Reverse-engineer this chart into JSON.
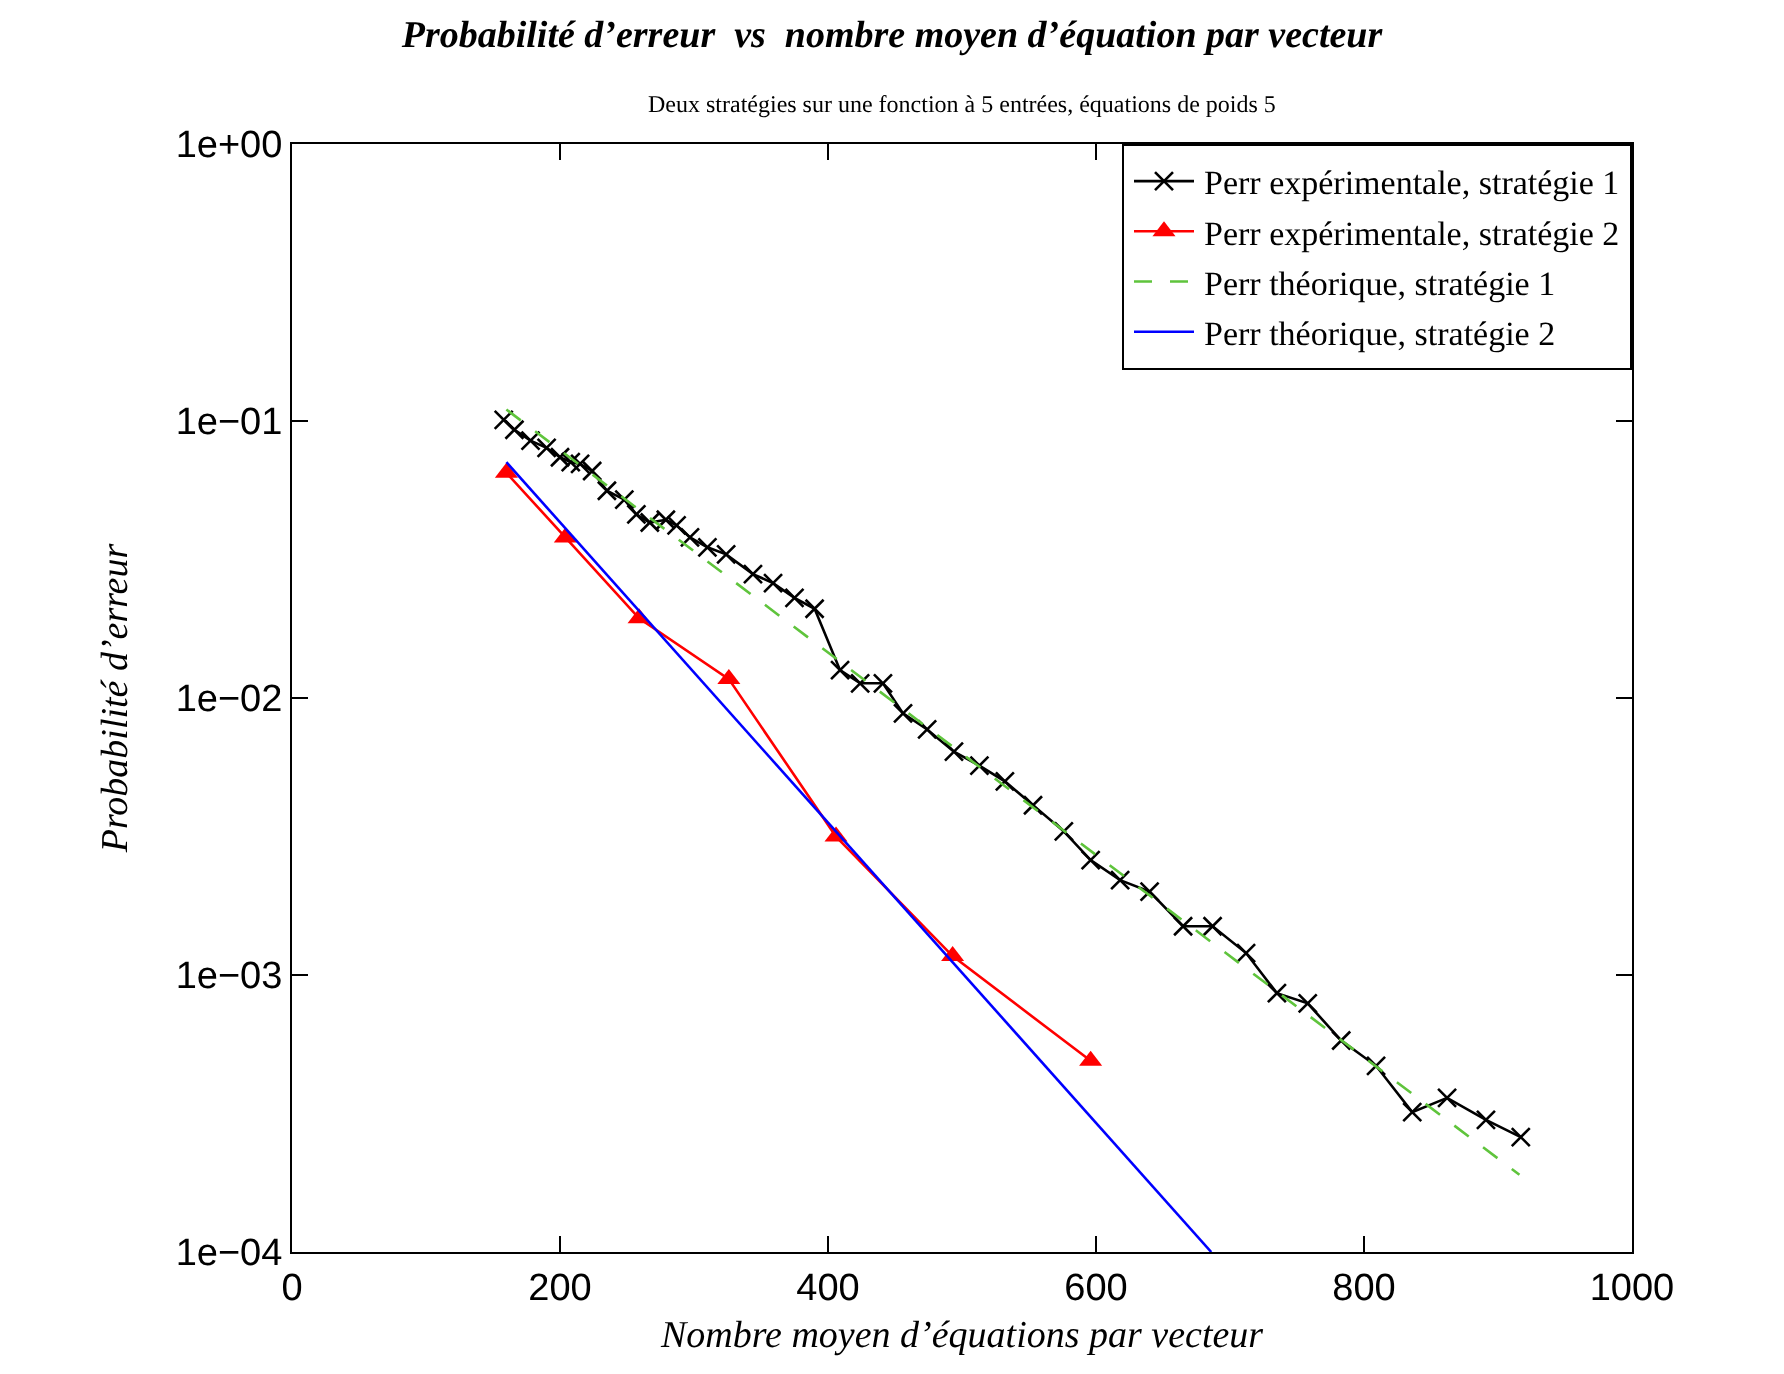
{
  "chart_data": {
    "type": "line",
    "title": "Probabilité d’erreur  vs  nombre moyen d’équation par vecteur",
    "subtitle": "Deux stratégies sur une fonction à 5 entrées, équations de poids 5",
    "xlabel": "Nombre moyen d’équations par vecteur",
    "ylabel": "Probabilité d’erreur",
    "log": "y",
    "grid": false,
    "legend": "top right",
    "xlim": [
      0,
      1000
    ],
    "xticks": [
      0,
      200,
      400,
      600,
      800,
      1000
    ],
    "ylim": [
      0.0001,
      1
    ],
    "yticks": [
      {
        "value": 1,
        "label": "1e+00"
      },
      {
        "value": 0.1,
        "label": "1e−01"
      },
      {
        "value": 0.01,
        "label": "1e−02"
      },
      {
        "value": 0.001,
        "label": "1e−03"
      },
      {
        "value": 0.0001,
        "label": "1e−04"
      }
    ],
    "series": [
      {
        "name": "Perr expérimentale, stratégie 1",
        "color": "#000000",
        "marker": "cross",
        "line_style": "solid",
        "x": [
          158,
          166,
          178,
          190,
          200,
          208,
          215,
          224,
          235,
          248,
          257,
          267,
          279,
          287,
          297,
          310,
          324,
          344,
          359,
          375,
          390,
          409,
          424,
          441,
          456,
          474,
          494,
          513,
          532,
          553,
          576,
          596,
          618,
          640,
          665,
          687,
          712,
          735,
          758,
          783,
          809,
          836,
          862,
          891,
          917
        ],
        "values": [
          0.101,
          0.093,
          0.085,
          0.08,
          0.074,
          0.071,
          0.07,
          0.066,
          0.056,
          0.052,
          0.046,
          0.043,
          0.044,
          0.042,
          0.038,
          0.035,
          0.033,
          0.028,
          0.026,
          0.023,
          0.021,
          0.0126,
          0.0113,
          0.0113,
          0.0088,
          0.0077,
          0.0064,
          0.0057,
          0.005,
          0.0041,
          0.0033,
          0.0026,
          0.0022,
          0.002,
          0.0015,
          0.0015,
          0.0012,
          0.00086,
          0.00079,
          0.00058,
          0.00047,
          0.00032,
          0.00036,
          0.0003,
          0.00026
        ]
      },
      {
        "name": "Perr expérimentale, stratégie 2",
        "color": "#ff0000",
        "marker": "triangle",
        "line_style": "solid",
        "x": [
          160,
          204,
          259,
          326,
          406,
          493,
          596
        ],
        "values": [
          0.065,
          0.038,
          0.0194,
          0.0117,
          0.00316,
          0.00117,
          0.00049
        ]
      },
      {
        "name": "Perr théorique, stratégie 1",
        "color": "#5fc43c",
        "marker": "none",
        "line_style": "dashed",
        "x": [
          160,
          916
        ],
        "values": [
          0.11,
          0.00019
        ]
      },
      {
        "name": "Perr théorique, stratégie 2",
        "color": "#0000ff",
        "marker": "none",
        "line_style": "solid",
        "x": [
          160,
          686
        ],
        "values": [
          0.071,
          0.0001
        ]
      }
    ]
  }
}
